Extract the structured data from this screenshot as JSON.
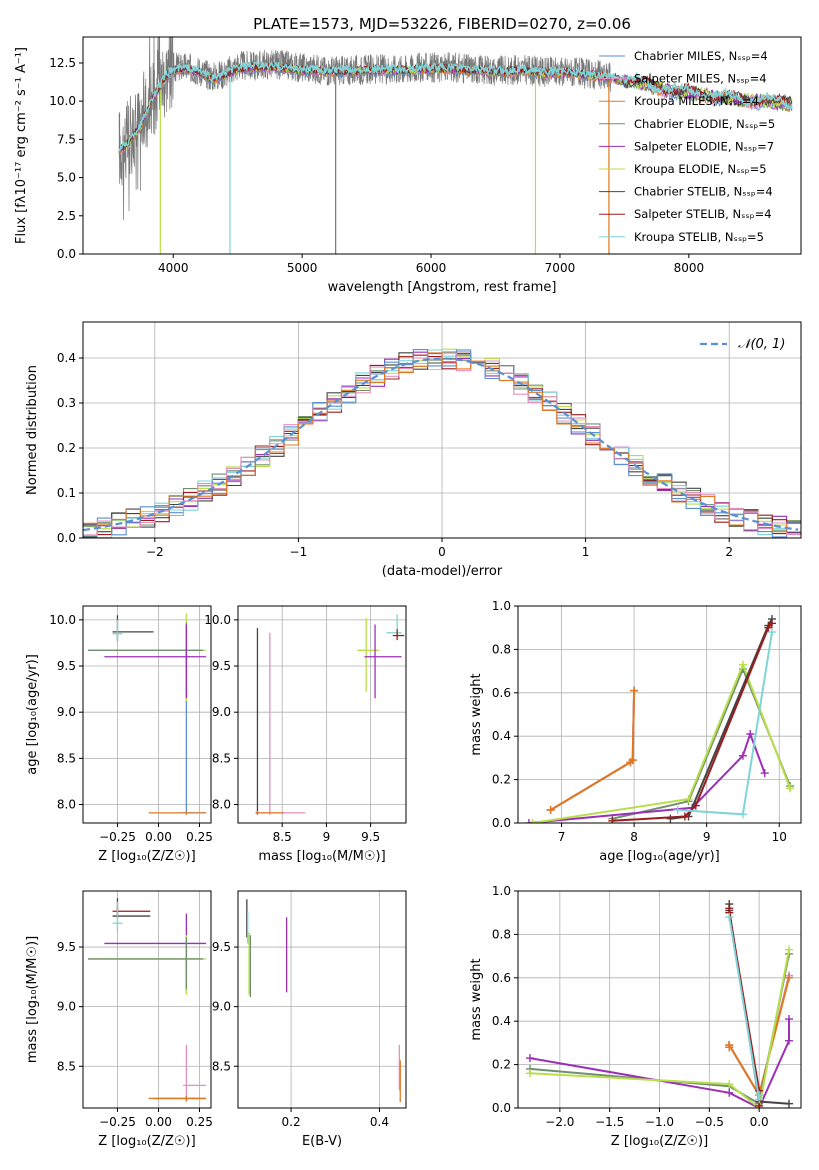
{
  "figure": {
    "palette": [
      "#5b8fd4",
      "#e58ec0",
      "#e0781f",
      "#6f8f6f",
      "#9b2fb8",
      "#b8df4a",
      "#444444",
      "#9b1c1c",
      "#7fd4d8"
    ]
  },
  "chart_data": [
    {
      "id": "spectrum",
      "type": "line",
      "title": "PLATE=1573, MJD=53226, FIBERID=0270, z=0.06",
      "xlabel": "wavelength [Angstrom, rest frame]",
      "ylabel": "Flux [fλ10⁻¹⁷ erg cm⁻² s⁻¹ A⁻¹]",
      "xlim": [
        3300,
        8870
      ],
      "ylim": [
        0,
        14.2
      ],
      "xticks": [
        4000,
        5000,
        6000,
        7000,
        8000
      ],
      "yticks": [
        0.0,
        2.5,
        5.0,
        7.5,
        10.0,
        12.5
      ],
      "grid": false,
      "legend_position": "top-right",
      "legend": [
        "Chabrier MILES, Nₛₛₚ=4",
        "Salpeter MILES, Nₛₛₚ=4",
        "Kroupa MILES, Nₛₛₚ=4",
        "Chabrier ELODIE, Nₛₛₚ=5",
        "Salpeter ELODIE, Nₛₛₚ=7",
        "Kroupa ELODIE, Nₛₛₚ=5",
        "Chabrier STELIB, Nₛₛₚ=4",
        "Salpeter STELIB, Nₛₛₚ=4",
        "Kroupa STELIB, Nₛₛₚ=5"
      ],
      "observed_spectrum": {
        "x": [
          3580,
          3650,
          3700,
          3750,
          3800,
          3850,
          3900,
          3950,
          4000,
          4100,
          4200,
          4300,
          4400,
          4500,
          4600,
          4700,
          4800,
          4900,
          5000,
          5100,
          5200,
          5300,
          5400,
          5500,
          5600,
          5700,
          5800,
          5900,
          6000,
          6100,
          6200,
          6300,
          6400,
          6500,
          6600,
          6700,
          6800,
          6900,
          7000,
          7100,
          7200,
          7300,
          7400
        ],
        "y": [
          7.0,
          7.4,
          8.2,
          8.8,
          9.8,
          10.5,
          11.2,
          11.9,
          12.2,
          12.2,
          12.0,
          11.6,
          11.8,
          12.3,
          12.3,
          12.4,
          12.4,
          12.3,
          12.2,
          12.1,
          12.0,
          12.0,
          12.0,
          12.1,
          12.1,
          12.1,
          12.1,
          12.2,
          12.2,
          12.2,
          12.2,
          12.1,
          12.1,
          12.0,
          12.0,
          12.1,
          12.0,
          11.9,
          12.0,
          11.9,
          11.8,
          11.7,
          11.6
        ]
      },
      "model_spectrum": {
        "x": [
          3580,
          3650,
          3700,
          3750,
          3800,
          3850,
          3900,
          3950,
          4000,
          4100,
          4200,
          4300,
          4400,
          4500,
          4600,
          4700,
          4800,
          4900,
          5000,
          5100,
          5200,
          5300,
          5400,
          5500,
          5600,
          5700,
          5800,
          5900,
          6000,
          6100,
          6200,
          6300,
          6400,
          6500,
          6600,
          6700,
          6800,
          6900,
          7000,
          7100,
          7200,
          7300,
          7400,
          7500,
          7600,
          7700,
          7800,
          7900,
          8000,
          8100,
          8200,
          8300,
          8400,
          8500,
          8600,
          8700,
          8800
        ],
        "y": [
          6.8,
          7.2,
          7.8,
          8.4,
          9.4,
          10.3,
          11.0,
          11.6,
          12.0,
          12.1,
          11.9,
          11.4,
          11.7,
          12.1,
          12.2,
          12.2,
          12.2,
          12.1,
          12.0,
          12.0,
          11.9,
          11.9,
          11.9,
          12.0,
          12.0,
          12.0,
          12.0,
          12.1,
          12.1,
          12.1,
          12.1,
          12.0,
          12.0,
          11.9,
          11.9,
          12.0,
          11.9,
          11.8,
          11.9,
          11.8,
          11.7,
          11.6,
          11.5,
          11.3,
          11.2,
          11.0,
          10.8,
          10.6,
          10.6,
          10.4,
          10.3,
          10.2,
          10.1,
          10.0,
          10.0,
          9.9,
          9.8
        ]
      },
      "masked_drops": [
        3900,
        4440,
        5260,
        6810,
        7380
      ]
    },
    {
      "id": "residuals",
      "type": "line",
      "xlabel": "(data-model)/error",
      "ylabel": "Normed distribution",
      "xlim": [
        -2.5,
        2.5
      ],
      "ylim": [
        0,
        0.48
      ],
      "xticks": [
        -2,
        -1,
        0,
        1,
        2
      ],
      "yticks": [
        0.0,
        0.1,
        0.2,
        0.3,
        0.4
      ],
      "grid": true,
      "legend_position": "top-right",
      "legend": [
        "𝒩(0, 1)"
      ],
      "reference_curve": {
        "mean": 0,
        "sigma": 1
      }
    },
    {
      "id": "age-vs-Z",
      "type": "scatter",
      "xlabel": "Z [log₁₀(Z/Z☉)]",
      "ylabel": "age  [log₁₀(age/yr)]",
      "xlim": [
        -0.46,
        0.32
      ],
      "ylim": [
        7.8,
        10.15
      ],
      "xticks": [
        -0.25,
        0.0,
        0.25
      ],
      "xtick_labels": [
        "−0.25",
        "0.00",
        "0.25"
      ],
      "yticks": [
        8.0,
        8.5,
        9.0,
        9.5,
        10.0
      ],
      "grid": true,
      "errorbars": [
        {
          "series": 0,
          "x": 0.17,
          "y": 7.91,
          "xerr": [
            0.05,
            0.12
          ],
          "yerr": [
            0.02,
            2.0
          ]
        },
        {
          "series": 6,
          "x": -0.25,
          "y": 9.87,
          "xerr": [
            0.03,
            0.22
          ],
          "yerr": [
            0.1,
            0.18
          ]
        },
        {
          "series": 8,
          "x": -0.25,
          "y": 9.85,
          "xerr": [
            0.03,
            0.03
          ],
          "yerr": [
            0.08,
            0.15
          ]
        },
        {
          "series": 5,
          "x": 0.17,
          "y": 9.67,
          "xerr": [
            0.6,
            0.12
          ],
          "yerr": [
            0.55,
            0.4
          ]
        },
        {
          "series": 3,
          "x": 0.17,
          "y": 9.67,
          "xerr": [
            0.6,
            0.1
          ],
          "yerr": [
            0.5,
            0.3
          ]
        },
        {
          "series": 4,
          "x": 0.17,
          "y": 9.6,
          "xerr": [
            0.5,
            0.12
          ],
          "yerr": [
            0.45,
            0.35
          ]
        },
        {
          "series": 2,
          "x": 0.17,
          "y": 7.91,
          "xerr": [
            0.23,
            0.12
          ],
          "yerr": [
            0.02,
            0.02
          ]
        }
      ]
    },
    {
      "id": "age-vs-mass",
      "type": "scatter",
      "xlabel": "mass [log₁₀(M/M☉)]",
      "xlim": [
        8.0,
        9.9
      ],
      "ylim": [
        7.8,
        10.15
      ],
      "xticks": [
        8.5,
        9.0,
        9.5
      ],
      "yticks": [
        8.0,
        8.5,
        9.0,
        9.5,
        10.0
      ],
      "grid": true,
      "errorbars": [
        {
          "series": 6,
          "x": 8.22,
          "y": 7.91,
          "xerr": [
            0.02,
            0.02
          ],
          "yerr": [
            0.02,
            2.0
          ]
        },
        {
          "series": 1,
          "x": 8.36,
          "y": 7.91,
          "xerr": [
            0.15,
            0.4
          ],
          "yerr": [
            0.02,
            1.95
          ]
        },
        {
          "series": 2,
          "x": 8.22,
          "y": 7.91,
          "xerr": [
            0.02,
            0.3
          ],
          "yerr": [
            0.02,
            0.02
          ]
        },
        {
          "series": 5,
          "x": 9.45,
          "y": 9.67,
          "xerr": [
            0.1,
            0.15
          ],
          "yerr": [
            0.45,
            0.35
          ]
        },
        {
          "series": 4,
          "x": 9.55,
          "y": 9.6,
          "xerr": [
            0.12,
            0.3
          ],
          "yerr": [
            0.45,
            0.35
          ]
        },
        {
          "series": 8,
          "x": 9.8,
          "y": 9.86,
          "xerr": [
            0.12,
            0.05
          ],
          "yerr": [
            0.05,
            0.2
          ]
        },
        {
          "series": 7,
          "x": 9.8,
          "y": 9.83,
          "xerr": [
            0.05,
            0.08
          ],
          "yerr": [
            0.05,
            0.07
          ]
        }
      ]
    },
    {
      "id": "weight-vs-age",
      "type": "line",
      "xlabel": "age  [log₁₀(age/yr)]",
      "ylabel": "mass weight",
      "xlim": [
        6.4,
        10.3
      ],
      "ylim": [
        0,
        1.0
      ],
      "xticks": [
        7,
        8,
        9,
        10
      ],
      "yticks": [
        0.0,
        0.2,
        0.4,
        0.6,
        0.8,
        1.0
      ],
      "grid": true,
      "series": [
        {
          "series": 0,
          "x": [
            6.85,
            7.95,
            7.98,
            8.0
          ],
          "y": [
            0.06,
            0.28,
            0.29,
            0.61
          ]
        },
        {
          "series": 1,
          "x": [
            6.85,
            7.95,
            7.98,
            8.0
          ],
          "y": [
            0.06,
            0.28,
            0.29,
            0.61
          ]
        },
        {
          "series": 2,
          "x": [
            6.85,
            7.95,
            7.98,
            8.0
          ],
          "y": [
            0.06,
            0.28,
            0.29,
            0.61
          ]
        },
        {
          "series": 3,
          "x": [
            7.7,
            8.75,
            9.5,
            10.15
          ],
          "y": [
            0.02,
            0.1,
            0.71,
            0.17
          ]
        },
        {
          "series": 4,
          "x": [
            6.55,
            8.8,
            9.5,
            9.6,
            9.8
          ],
          "y": [
            0.0,
            0.07,
            0.31,
            0.41,
            0.23
          ]
        },
        {
          "series": 5,
          "x": [
            6.6,
            8.75,
            9.5,
            10.15
          ],
          "y": [
            0.0,
            0.11,
            0.73,
            0.16
          ]
        },
        {
          "series": 6,
          "x": [
            8.5,
            8.75,
            9.85,
            9.9
          ],
          "y": [
            0.02,
            0.03,
            0.91,
            0.94
          ]
        },
        {
          "series": 7,
          "x": [
            7.7,
            8.7,
            8.85,
            9.85,
            9.9
          ],
          "y": [
            0.01,
            0.03,
            0.08,
            0.9,
            0.92
          ]
        },
        {
          "series": 8,
          "x": [
            8.6,
            9.5,
            9.9
          ],
          "y": [
            0.06,
            0.04,
            0.88
          ]
        }
      ]
    },
    {
      "id": "mass-vs-Z",
      "type": "scatter",
      "xlabel": "Z [log₁₀(Z/Z☉)]",
      "ylabel": "mass [log₁₀(M/M☉)]",
      "xlim": [
        -0.46,
        0.32
      ],
      "ylim": [
        8.15,
        9.97
      ],
      "xticks": [
        -0.25,
        0.0,
        0.25
      ],
      "xtick_labels": [
        "−0.25",
        "0.00",
        "0.25"
      ],
      "yticks": [
        8.5,
        9.0,
        9.5
      ],
      "grid": true,
      "errorbars": [
        {
          "series": 7,
          "x": -0.25,
          "y": 9.8,
          "xerr": [
            0.03,
            0.2
          ],
          "yerr": [
            0.04,
            0.04
          ]
        },
        {
          "series": 6,
          "x": -0.25,
          "y": 9.76,
          "xerr": [
            0.03,
            0.2
          ],
          "yerr": [
            0.02,
            0.15
          ]
        },
        {
          "series": 8,
          "x": -0.25,
          "y": 9.7,
          "xerr": [
            0.03,
            0.03
          ],
          "yerr": [
            0.08,
            0.18
          ]
        },
        {
          "series": 4,
          "x": 0.17,
          "y": 9.53,
          "xerr": [
            0.5,
            0.12
          ],
          "yerr": [
            0.4,
            0.25
          ]
        },
        {
          "series": 5,
          "x": 0.17,
          "y": 9.4,
          "xerr": [
            0.6,
            0.12
          ],
          "yerr": [
            0.3,
            0.2
          ]
        },
        {
          "series": 3,
          "x": 0.17,
          "y": 9.4,
          "xerr": [
            0.6,
            0.1
          ],
          "yerr": [
            0.25,
            0.18
          ]
        },
        {
          "series": 1,
          "x": 0.17,
          "y": 8.34,
          "xerr": [
            0.02,
            0.12
          ],
          "yerr": [
            0.14,
            0.34
          ]
        },
        {
          "series": 0,
          "x": 0.17,
          "y": 8.23,
          "xerr": [
            0.2,
            0.12
          ],
          "yerr": [
            0.02,
            0.02
          ]
        },
        {
          "series": 2,
          "x": 0.17,
          "y": 8.23,
          "xerr": [
            0.23,
            0.12
          ],
          "yerr": [
            0.02,
            0.02
          ]
        }
      ]
    },
    {
      "id": "mass-vs-EBV",
      "type": "scatter",
      "xlabel": "E(B-V)",
      "xlim": [
        0.08,
        0.46
      ],
      "ylim": [
        8.15,
        9.97
      ],
      "xticks": [
        0.2,
        0.4
      ],
      "yticks": [
        8.5,
        9.0,
        9.5
      ],
      "grid": true,
      "errorbars": [
        {
          "series": 6,
          "x": 0.1,
          "y": 9.78,
          "xerr": [
            0,
            0
          ],
          "yerr": [
            0.2,
            0.12
          ]
        },
        {
          "series": 8,
          "x": 0.102,
          "y": 9.68,
          "xerr": [
            0,
            0
          ],
          "yerr": [
            0.15,
            0.12
          ]
        },
        {
          "series": 5,
          "x": 0.105,
          "y": 9.4,
          "xerr": [
            0,
            0
          ],
          "yerr": [
            0.3,
            0.22
          ]
        },
        {
          "series": 3,
          "x": 0.108,
          "y": 9.4,
          "xerr": [
            0,
            0
          ],
          "yerr": [
            0.32,
            0.2
          ]
        },
        {
          "series": 4,
          "x": 0.19,
          "y": 9.45,
          "xerr": [
            0,
            0
          ],
          "yerr": [
            0.33,
            0.3
          ]
        },
        {
          "series": 1,
          "x": 0.445,
          "y": 8.5,
          "xerr": [
            0,
            0
          ],
          "yerr": [
            0.2,
            0.18
          ]
        },
        {
          "series": 2,
          "x": 0.447,
          "y": 8.4,
          "xerr": [
            0,
            0
          ],
          "yerr": [
            0.2,
            0.15
          ]
        }
      ]
    },
    {
      "id": "weight-vs-Z",
      "type": "line",
      "xlabel": "Z [log₁₀(Z/Z☉)]",
      "ylabel": "mass weight",
      "xlim": [
        -2.42,
        0.42
      ],
      "ylim": [
        0,
        1.0
      ],
      "xticks": [
        -2.0,
        -1.5,
        -1.0,
        -0.5,
        0.0
      ],
      "xtick_labels": [
        "−2.0",
        "−1.5",
        "−1.0",
        "−0.5",
        "0.0"
      ],
      "yticks": [
        0.0,
        0.2,
        0.4,
        0.6,
        0.8,
        1.0
      ],
      "grid": true,
      "series": [
        {
          "series": 0,
          "x": [
            -0.3,
            -0.3,
            0.0,
            0.3
          ],
          "y": [
            0.28,
            0.29,
            0.06,
            0.61
          ]
        },
        {
          "series": 1,
          "x": [
            -0.3,
            -0.3,
            0.0,
            0.3
          ],
          "y": [
            0.28,
            0.29,
            0.06,
            0.61
          ]
        },
        {
          "series": 2,
          "x": [
            -0.3,
            -0.3,
            0.0,
            0.3
          ],
          "y": [
            0.28,
            0.29,
            0.06,
            0.6
          ]
        },
        {
          "series": 3,
          "x": [
            -2.3,
            -0.3,
            0.0,
            0.3
          ],
          "y": [
            0.18,
            0.1,
            0.02,
            0.71
          ]
        },
        {
          "series": 4,
          "x": [
            -2.3,
            -0.3,
            0.0,
            0.3,
            0.3
          ],
          "y": [
            0.23,
            0.07,
            0.0,
            0.31,
            0.41
          ]
        },
        {
          "series": 5,
          "x": [
            -2.3,
            -0.3,
            0.0,
            0.3
          ],
          "y": [
            0.16,
            0.11,
            0.0,
            0.73
          ]
        },
        {
          "series": 6,
          "x": [
            -0.3,
            -0.3,
            0.0,
            0.3
          ],
          "y": [
            0.94,
            0.91,
            0.03,
            0.02
          ]
        },
        {
          "series": 7,
          "x": [
            -0.3,
            -0.3,
            0.0,
            0.0
          ],
          "y": [
            0.92,
            0.9,
            0.08,
            0.01
          ]
        },
        {
          "series": 8,
          "x": [
            -0.3,
            0.0,
            0.0
          ],
          "y": [
            0.88,
            0.04,
            0.06
          ]
        }
      ]
    }
  ]
}
